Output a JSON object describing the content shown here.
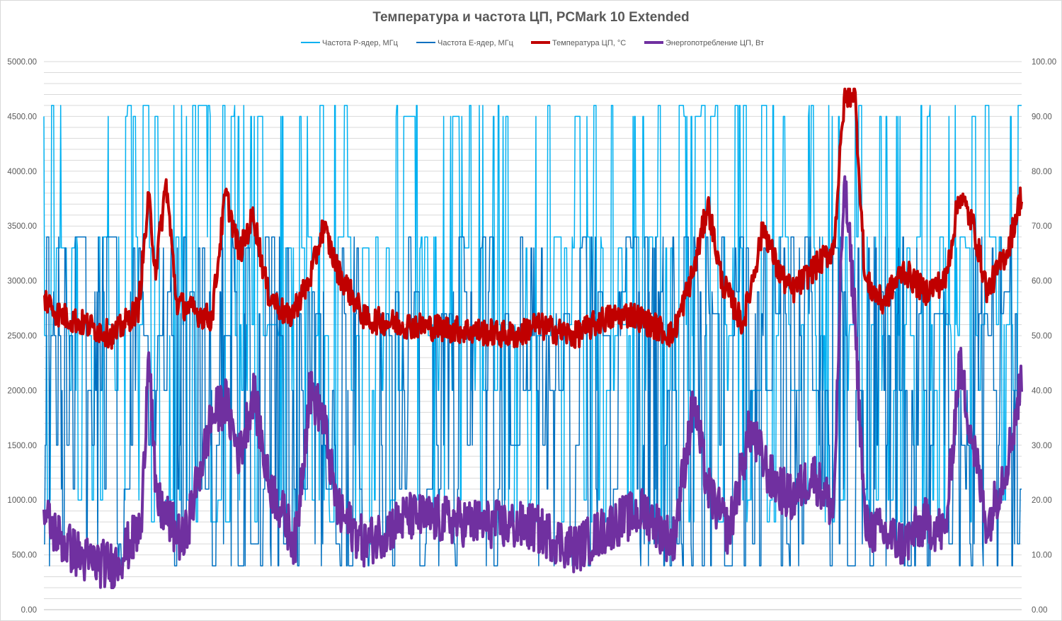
{
  "chart_data": {
    "type": "line",
    "title": "Температура и частота ЦП, PCMark 10 Extended",
    "xlabel": "",
    "ylabel": "",
    "y_left": {
      "min": 0,
      "max": 5000,
      "ticks": [
        "0.00",
        "500.00",
        "1000.00",
        "1500.00",
        "2000.00",
        "2500.00",
        "3000.00",
        "3500.00",
        "4000.00",
        "4500.00",
        "5000.00"
      ]
    },
    "y_right": {
      "min": 0,
      "max": 100,
      "ticks": [
        "0.00",
        "10.00",
        "20.00",
        "30.00",
        "40.00",
        "50.00",
        "60.00",
        "70.00",
        "80.00",
        "90.00",
        "100.00"
      ]
    },
    "grid": true,
    "legend_position": "top",
    "num_samples": 1400,
    "series": [
      {
        "name": "Частота P-ядер, МГц",
        "axis": "left",
        "color": "#00b0f0",
        "width": 1.5,
        "typical_range": [
          800,
          4600
        ],
        "levels": [
          4500,
          4600,
          3400,
          3300,
          2600,
          2500,
          2000,
          1000,
          800
        ],
        "peak": 4600
      },
      {
        "name": "Частота E-ядер, МГц",
        "axis": "left",
        "color": "#0070c0",
        "width": 1.5,
        "typical_range": [
          400,
          3400
        ],
        "levels": [
          3300,
          3400,
          2900,
          2700,
          2500,
          2000,
          1500,
          1100,
          600,
          400
        ],
        "peak": 3400
      },
      {
        "name": "Температура ЦП, °C",
        "axis": "right",
        "color": "#c00000",
        "width": 4,
        "typical_range": [
          49,
          78
        ],
        "peak": 95,
        "profile": [
          [
            0,
            57
          ],
          [
            20,
            54
          ],
          [
            60,
            52
          ],
          [
            100,
            50
          ],
          [
            135,
            55
          ],
          [
            150,
            75
          ],
          [
            160,
            62
          ],
          [
            175,
            78
          ],
          [
            190,
            56
          ],
          [
            240,
            53
          ],
          [
            260,
            76
          ],
          [
            280,
            65
          ],
          [
            300,
            72
          ],
          [
            320,
            58
          ],
          [
            350,
            53
          ],
          [
            380,
            60
          ],
          [
            400,
            70
          ],
          [
            420,
            62
          ],
          [
            460,
            53
          ],
          [
            520,
            52
          ],
          [
            600,
            51
          ],
          [
            680,
            50
          ],
          [
            700,
            52
          ],
          [
            760,
            50
          ],
          [
            800,
            53
          ],
          [
            840,
            54
          ],
          [
            900,
            50
          ],
          [
            930,
            62
          ],
          [
            950,
            74
          ],
          [
            970,
            60
          ],
          [
            1000,
            52
          ],
          [
            1030,
            70
          ],
          [
            1050,
            62
          ],
          [
            1070,
            58
          ],
          [
            1100,
            62
          ],
          [
            1130,
            66
          ],
          [
            1145,
            93
          ],
          [
            1160,
            95
          ],
          [
            1175,
            60
          ],
          [
            1200,
            56
          ],
          [
            1230,
            62
          ],
          [
            1260,
            58
          ],
          [
            1290,
            60
          ],
          [
            1310,
            76
          ],
          [
            1330,
            70
          ],
          [
            1350,
            58
          ],
          [
            1380,
            66
          ],
          [
            1399,
            76
          ]
        ]
      },
      {
        "name": "Энергопотребление ЦП, Вт",
        "axis": "right",
        "color": "#7030a0",
        "width": 4,
        "typical_range": [
          6,
          41
        ],
        "peak": 79,
        "profile": [
          [
            0,
            17
          ],
          [
            30,
            12
          ],
          [
            60,
            9
          ],
          [
            100,
            8
          ],
          [
            140,
            15
          ],
          [
            150,
            50
          ],
          [
            160,
            20
          ],
          [
            200,
            12
          ],
          [
            240,
            35
          ],
          [
            260,
            38
          ],
          [
            280,
            28
          ],
          [
            300,
            40
          ],
          [
            320,
            24
          ],
          [
            360,
            12
          ],
          [
            380,
            40
          ],
          [
            400,
            35
          ],
          [
            420,
            18
          ],
          [
            460,
            12
          ],
          [
            520,
            17
          ],
          [
            600,
            16
          ],
          [
            700,
            15
          ],
          [
            760,
            11
          ],
          [
            820,
            16
          ],
          [
            860,
            18
          ],
          [
            900,
            12
          ],
          [
            930,
            38
          ],
          [
            950,
            22
          ],
          [
            980,
            14
          ],
          [
            1010,
            33
          ],
          [
            1040,
            24
          ],
          [
            1070,
            20
          ],
          [
            1100,
            25
          ],
          [
            1130,
            18
          ],
          [
            1145,
            79
          ],
          [
            1160,
            55
          ],
          [
            1175,
            15
          ],
          [
            1200,
            14
          ],
          [
            1230,
            12
          ],
          [
            1260,
            16
          ],
          [
            1290,
            14
          ],
          [
            1310,
            45
          ],
          [
            1330,
            30
          ],
          [
            1350,
            15
          ],
          [
            1380,
            28
          ],
          [
            1399,
            42
          ]
        ]
      }
    ]
  }
}
